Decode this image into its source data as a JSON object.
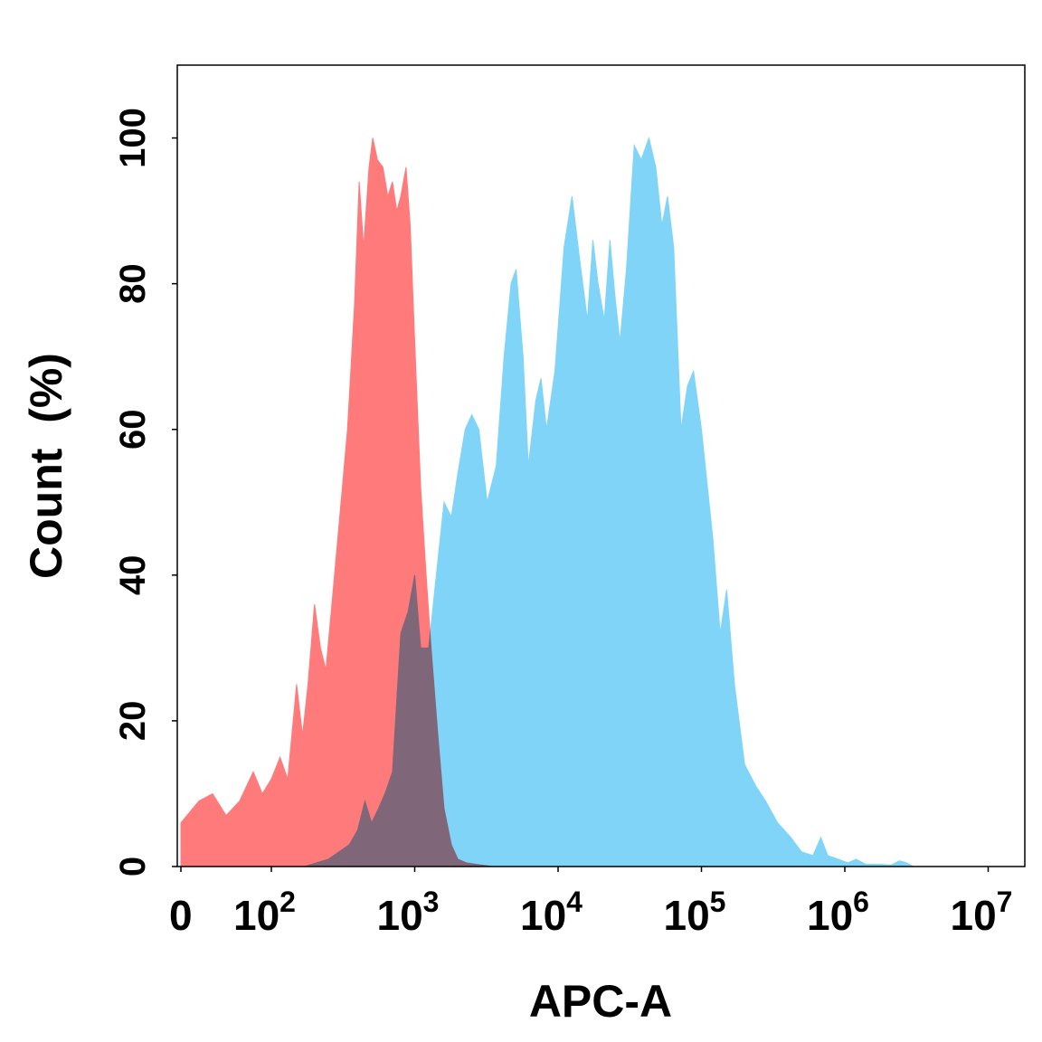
{
  "chart_data": {
    "type": "area",
    "title": "",
    "xlabel": "APC-A",
    "ylabel": "Count (%)",
    "x_scale": "log",
    "x_ticks": [
      {
        "value": 0,
        "base": "0",
        "exp": ""
      },
      {
        "value": 100,
        "base": "10",
        "exp": "2"
      },
      {
        "value": 1000,
        "base": "10",
        "exp": "3"
      },
      {
        "value": 10000,
        "base": "10",
        "exp": "4"
      },
      {
        "value": 100000,
        "base": "10",
        "exp": "5"
      },
      {
        "value": 1000000,
        "base": "10",
        "exp": "6"
      },
      {
        "value": 10000000,
        "base": "10",
        "exp": "7"
      }
    ],
    "y_ticks": [
      "0",
      "20",
      "40",
      "60",
      "80",
      "100"
    ],
    "ylim": [
      0,
      110
    ],
    "grid": false,
    "legend": "none",
    "series": [
      {
        "color": "#ff7b7b",
        "points": [
          [
            0,
            6
          ],
          [
            20,
            9
          ],
          [
            35,
            10
          ],
          [
            50,
            7
          ],
          [
            65,
            9
          ],
          [
            80,
            13
          ],
          [
            90,
            10
          ],
          [
            100,
            12
          ],
          [
            115,
            15
          ],
          [
            130,
            12
          ],
          [
            150,
            25
          ],
          [
            165,
            18
          ],
          [
            180,
            25
          ],
          [
            200,
            36
          ],
          [
            220,
            30
          ],
          [
            240,
            27
          ],
          [
            270,
            38
          ],
          [
            300,
            48
          ],
          [
            340,
            60
          ],
          [
            380,
            77
          ],
          [
            410,
            94
          ],
          [
            440,
            85
          ],
          [
            480,
            96
          ],
          [
            510,
            100
          ],
          [
            550,
            97
          ],
          [
            600,
            96
          ],
          [
            650,
            92
          ],
          [
            700,
            94
          ],
          [
            750,
            90
          ],
          [
            800,
            92
          ],
          [
            870,
            96
          ],
          [
            930,
            88
          ],
          [
            1000,
            72
          ],
          [
            1100,
            52
          ],
          [
            1200,
            40
          ],
          [
            1300,
            30
          ],
          [
            1450,
            18
          ],
          [
            1600,
            8
          ],
          [
            1800,
            3
          ],
          [
            2000,
            1
          ],
          [
            2300,
            0.5
          ],
          [
            2700,
            0.3
          ],
          [
            3500,
            0
          ]
        ]
      },
      {
        "color": "#7fd4f8",
        "points": [
          [
            170,
            0
          ],
          [
            250,
            1
          ],
          [
            350,
            3
          ],
          [
            400,
            5
          ],
          [
            450,
            9
          ],
          [
            500,
            6
          ],
          [
            560,
            8
          ],
          [
            620,
            10
          ],
          [
            700,
            13
          ],
          [
            800,
            32
          ],
          [
            900,
            35
          ],
          [
            1000,
            40
          ],
          [
            1100,
            30
          ],
          [
            1250,
            30
          ],
          [
            1450,
            42
          ],
          [
            1600,
            50
          ],
          [
            1800,
            48
          ],
          [
            2000,
            54
          ],
          [
            2250,
            60
          ],
          [
            2500,
            62
          ],
          [
            2800,
            60
          ],
          [
            3200,
            50
          ],
          [
            3700,
            55
          ],
          [
            4200,
            70
          ],
          [
            4700,
            80
          ],
          [
            5100,
            82
          ],
          [
            5700,
            70
          ],
          [
            6200,
            55
          ],
          [
            7000,
            64
          ],
          [
            7600,
            67
          ],
          [
            8300,
            60
          ],
          [
            9500,
            68
          ],
          [
            11000,
            85
          ],
          [
            12500,
            92
          ],
          [
            14000,
            84
          ],
          [
            16000,
            75
          ],
          [
            17500,
            86
          ],
          [
            19000,
            80
          ],
          [
            21000,
            75
          ],
          [
            23000,
            86
          ],
          [
            25000,
            78
          ],
          [
            27000,
            72
          ],
          [
            30000,
            82
          ],
          [
            34000,
            99
          ],
          [
            38000,
            97
          ],
          [
            43000,
            100
          ],
          [
            48000,
            96
          ],
          [
            53000,
            88
          ],
          [
            58000,
            92
          ],
          [
            64000,
            85
          ],
          [
            72000,
            60
          ],
          [
            80000,
            66
          ],
          [
            88000,
            68
          ],
          [
            100000,
            60
          ],
          [
            120000,
            45
          ],
          [
            135000,
            32
          ],
          [
            150000,
            38
          ],
          [
            170000,
            25
          ],
          [
            200000,
            14
          ],
          [
            240000,
            11
          ],
          [
            280000,
            9
          ],
          [
            340000,
            6
          ],
          [
            420000,
            4
          ],
          [
            500000,
            2
          ],
          [
            600000,
            1.5
          ],
          [
            680000,
            4
          ],
          [
            760000,
            1.5
          ],
          [
            900000,
            1
          ],
          [
            1050000,
            0.5
          ],
          [
            1200000,
            1
          ],
          [
            1400000,
            0.3
          ],
          [
            1800000,
            0.3
          ],
          [
            2100000,
            0.2
          ],
          [
            2400000,
            0.8
          ],
          [
            2700000,
            0.5
          ],
          [
            3000000,
            0
          ]
        ]
      }
    ]
  }
}
